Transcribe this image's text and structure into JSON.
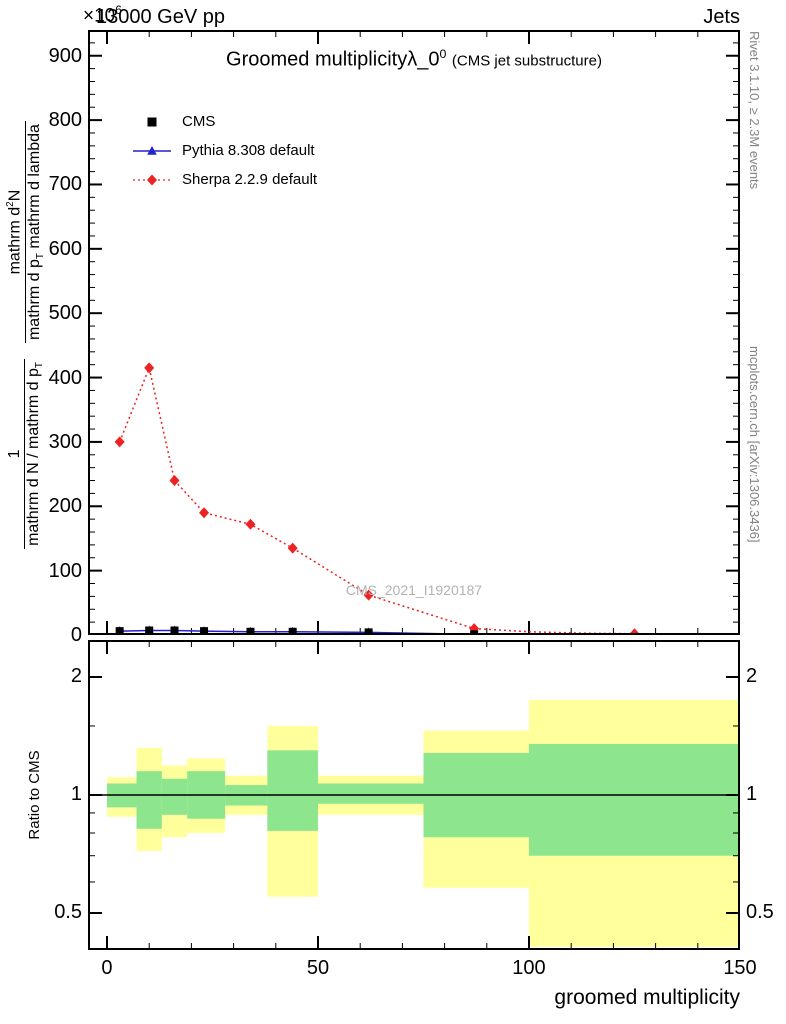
{
  "header": {
    "left": "13000 GeV pp",
    "right": "Jets",
    "scale_prefix": "×10",
    "scale_exp": "6"
  },
  "title": {
    "main": "Groomed multiplicity",
    "lambda": "λ_0",
    "sup": "0",
    "suffix": "(CMS jet substructure)"
  },
  "xlabel": "groomed multiplicity",
  "ratio_ylabel": "Ratio to CMS",
  "watermark": "CMS_2021_I1920187",
  "sidebar_right": {
    "top": "Rivet 3.1.10, ≥ 2.3M events",
    "bottom": "mcplots.cern.ch [arXiv:1306.3436]"
  },
  "ylabel": {
    "f1_num": "1",
    "f1_den_a": "mathrm d N / mathrm d p",
    "f1_den_sub": "T",
    "f2_num_a": "mathrm d",
    "f2_num_sup": "2",
    "f2_num_b": "N",
    "f2_den_a": "mathrm d p",
    "f2_den_sub": "T",
    "f2_den_b": " mathrm d lambda"
  },
  "legend": [
    {
      "label": "CMS",
      "marker": "square",
      "color": "#000000"
    },
    {
      "label": "Pythia 8.308 default",
      "marker": "triangle-line",
      "color": "#2222cc"
    },
    {
      "label": "Sherpa 2.2.9 default",
      "marker": "diamond-dotted",
      "color": "#ed2222"
    }
  ],
  "colors": {
    "cms": "#000000",
    "pythia_blue": "#2222cc",
    "sherpa_red": "#ed2222",
    "band_yellow": "#ffff9c",
    "band_green": "#8de68d",
    "note_gray": "#828282",
    "watermark_gray": "#b3b3b3"
  },
  "chart_data": [
    {
      "type": "line",
      "panel": "main",
      "title": "Groomed multiplicity λ_0^0 (CMS jet substructure)",
      "xlabel": "groomed multiplicity",
      "ylabel": "1/(dN/dp_T) d^2N/(dp_T dlambda)",
      "y_scale_factor": "×10^6",
      "xlim": [
        -4.5,
        150
      ],
      "ylim": [
        0,
        940
      ],
      "xticks": [
        0,
        50,
        100,
        150
      ],
      "xtick_labels": [
        "0",
        "50",
        "100",
        "150"
      ],
      "xtick_step": 50,
      "x_minor_step": 10,
      "yticks": [
        0,
        100,
        200,
        300,
        400,
        500,
        600,
        700,
        800,
        900
      ],
      "ytick_labels": [
        "0",
        "100",
        "200",
        "300",
        "400",
        "500",
        "600",
        "700",
        "800",
        "900"
      ],
      "ytick_step": 100,
      "y_minor_step": 20,
      "grid": false,
      "legend_position": "top-left",
      "series": [
        {
          "name": "CMS",
          "marker": "square",
          "color": "#000000",
          "x": [
            3,
            10,
            16,
            23,
            34,
            44,
            62,
            87
          ],
          "y": [
            6,
            7,
            7,
            6,
            5,
            5,
            4,
            1
          ]
        },
        {
          "name": "Pythia 8.308 default",
          "marker": "triangle",
          "line": "solid",
          "color": "#2222cc",
          "x": [
            3,
            10,
            16,
            23,
            34,
            44,
            62,
            87
          ],
          "y": [
            6,
            7,
            7,
            6,
            5,
            5,
            4,
            1
          ]
        },
        {
          "name": "Sherpa 2.2.9 default",
          "marker": "diamond",
          "line": "dotted",
          "color": "#ed2222",
          "x": [
            3,
            10,
            16,
            23,
            34,
            44,
            62,
            87,
            100,
            112,
            125,
            150
          ],
          "y": [
            300,
            415,
            240,
            190,
            172,
            135,
            62,
            10,
            5,
            3,
            2,
            1
          ],
          "marker_mask": [
            1,
            1,
            1,
            1,
            1,
            1,
            1,
            1,
            0,
            0,
            1,
            0
          ]
        }
      ]
    },
    {
      "type": "ratio-bands",
      "panel": "ratio",
      "ylabel": "Ratio to CMS",
      "yscale": "log",
      "ylim": [
        0.4,
        2.48
      ],
      "yticks": [
        0.5,
        1,
        2
      ],
      "ytick_labels": [
        "0.5",
        "1",
        "2"
      ],
      "y_minor": [
        0.4,
        0.6,
        0.7,
        0.8,
        0.9,
        1.5
      ],
      "reference_line": 1,
      "band_colors": {
        "outer": "#ffff9c",
        "inner": "#8de68d"
      },
      "bands": [
        {
          "x0": 0,
          "x1": 7,
          "outer": [
            0.88,
            1.11
          ],
          "inner": [
            0.93,
            1.07
          ]
        },
        {
          "x0": 7,
          "x1": 13,
          "outer": [
            0.72,
            1.32
          ],
          "inner": [
            0.82,
            1.15
          ]
        },
        {
          "x0": 13,
          "x1": 19,
          "outer": [
            0.78,
            1.19
          ],
          "inner": [
            0.89,
            1.1
          ]
        },
        {
          "x0": 19,
          "x1": 28,
          "outer": [
            0.8,
            1.24
          ],
          "inner": [
            0.87,
            1.15
          ]
        },
        {
          "x0": 28,
          "x1": 38,
          "outer": [
            0.89,
            1.12
          ],
          "inner": [
            0.94,
            1.06
          ]
        },
        {
          "x0": 38,
          "x1": 50,
          "outer": [
            0.55,
            1.5
          ],
          "inner": [
            0.81,
            1.3
          ]
        },
        {
          "x0": 50,
          "x1": 75,
          "outer": [
            0.89,
            1.12
          ],
          "inner": [
            0.95,
            1.07
          ]
        },
        {
          "x0": 75,
          "x1": 100,
          "outer": [
            0.58,
            1.46
          ],
          "inner": [
            0.78,
            1.28
          ]
        },
        {
          "x0": 100,
          "x1": 150,
          "outer": [
            0.41,
            1.75
          ],
          "inner": [
            0.7,
            1.35
          ]
        }
      ]
    }
  ]
}
